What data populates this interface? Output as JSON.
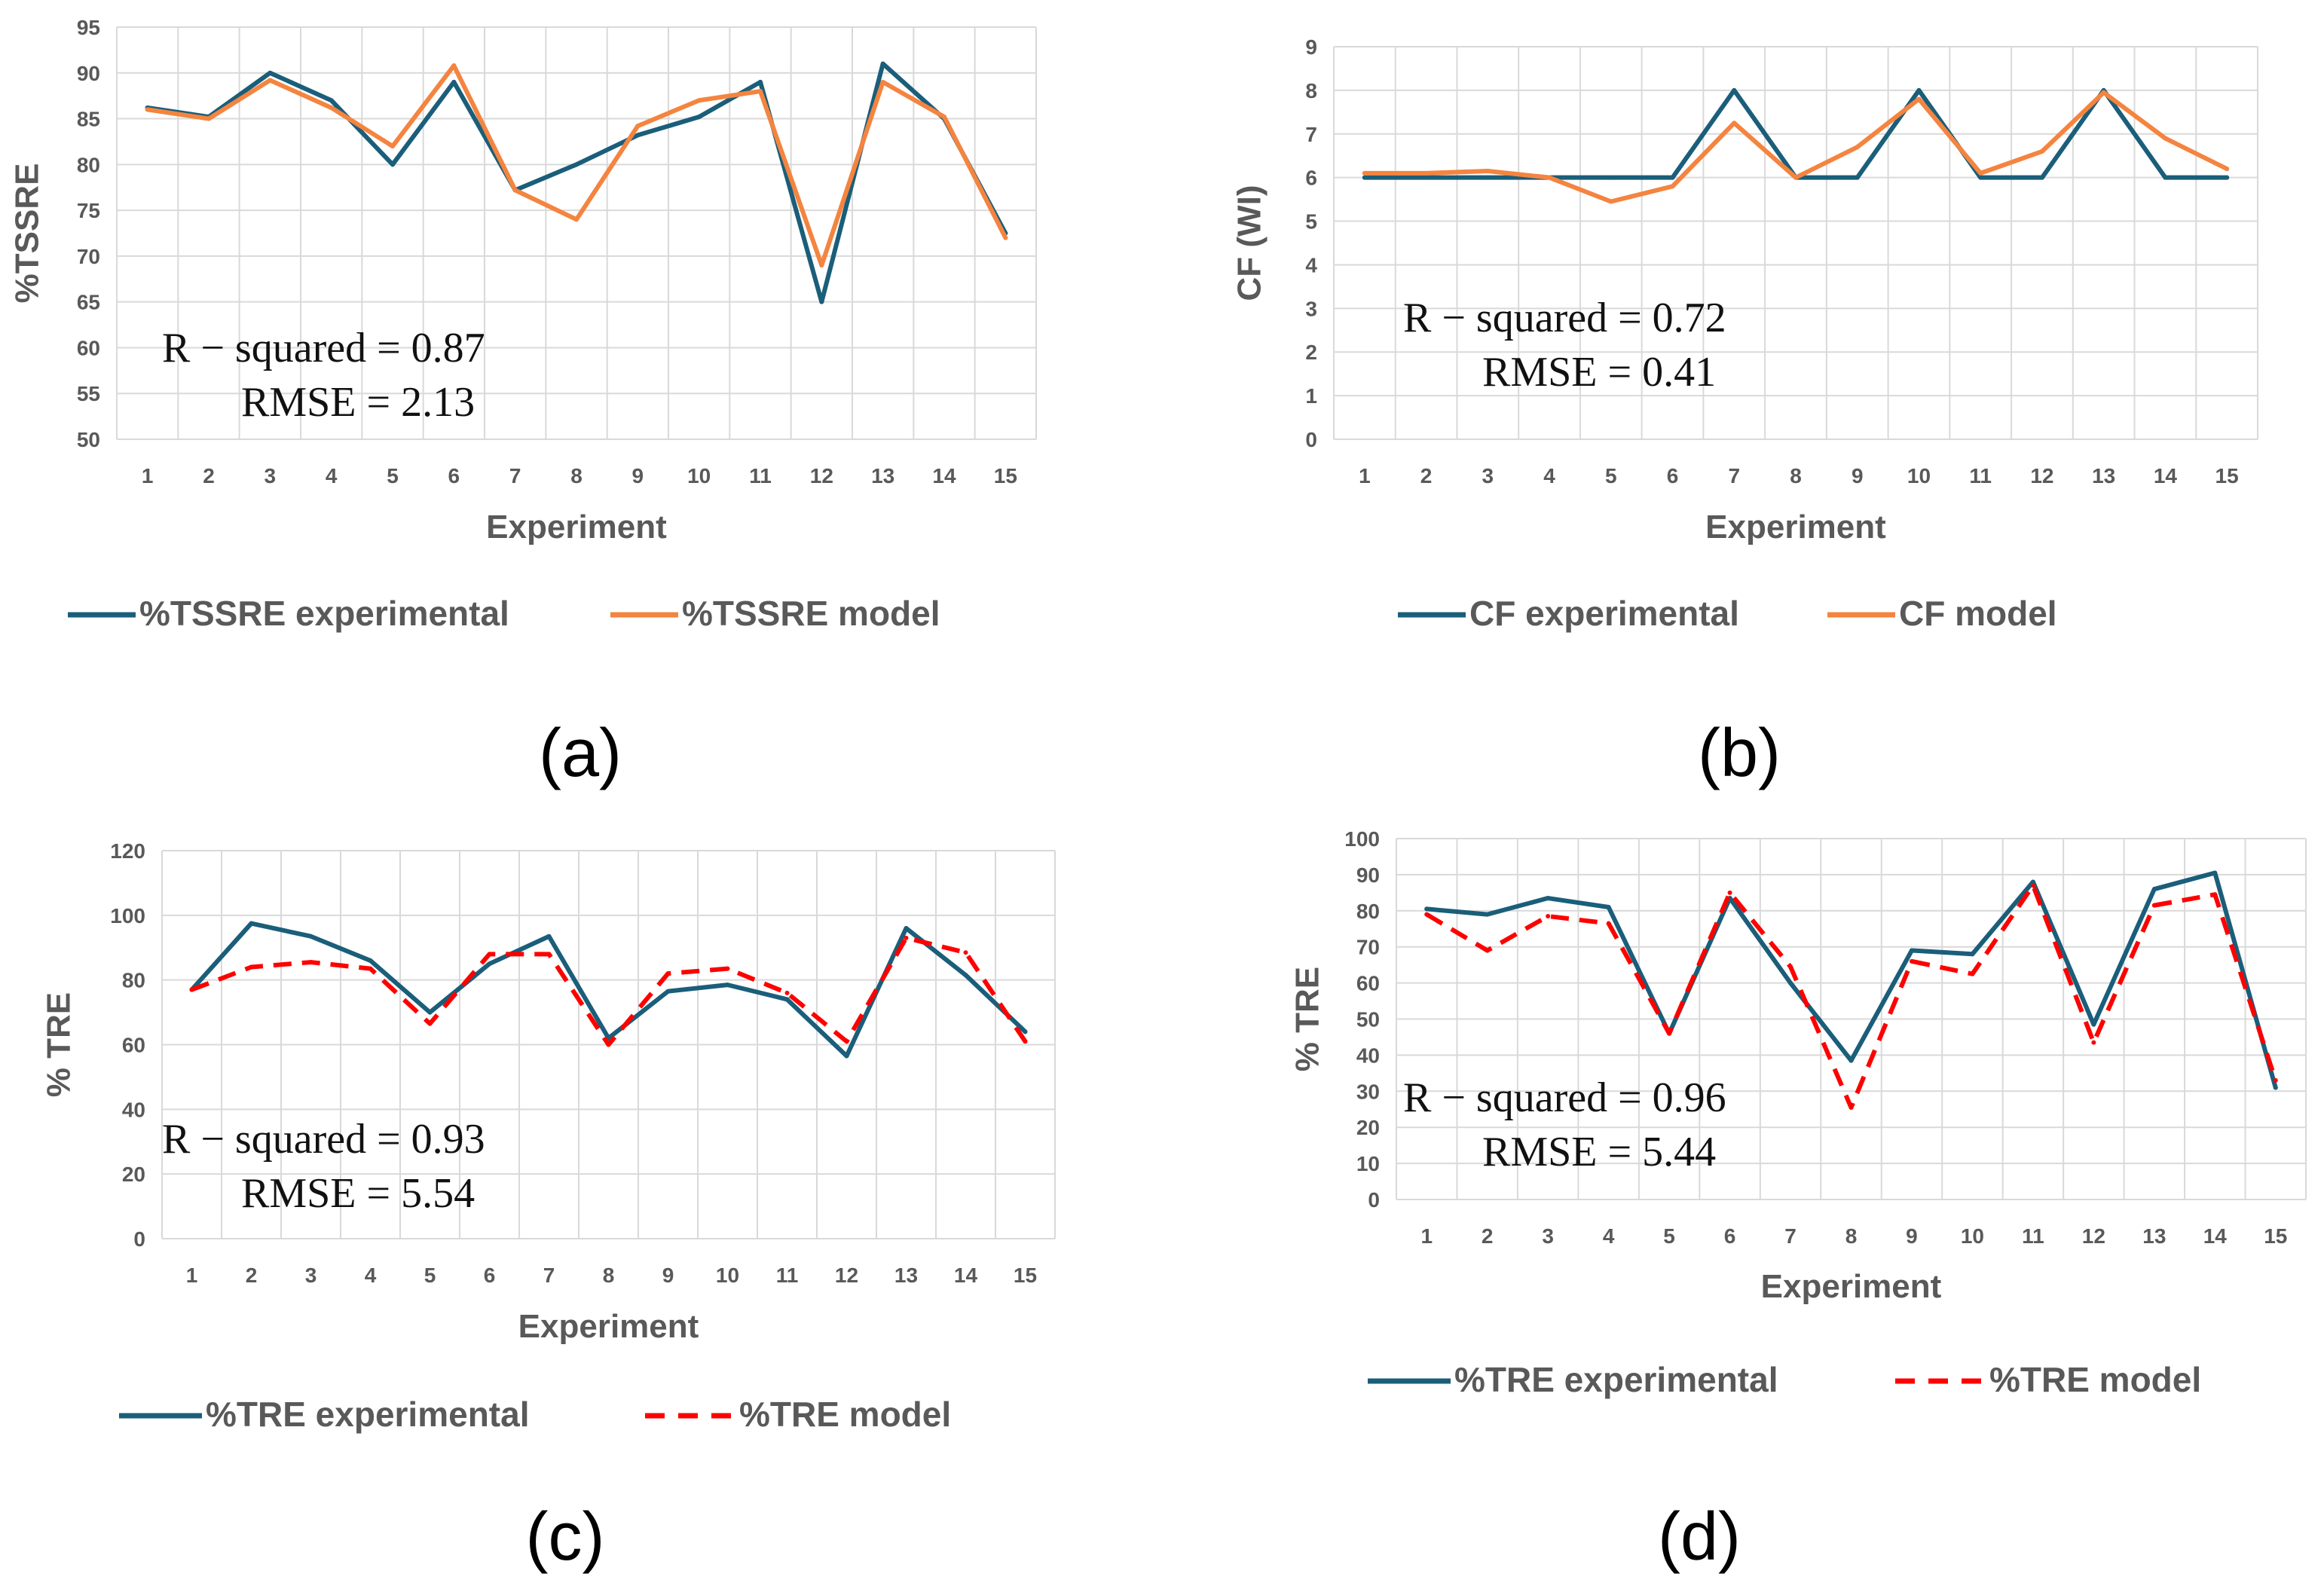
{
  "chart_data": [
    {
      "type": "line",
      "panel_label": "(a)",
      "title": "",
      "xlabel": "Experiment",
      "ylabel": "%TSSRE",
      "ylim": [
        50,
        95
      ],
      "ytick_step": 5,
      "grid": true,
      "legend": "bottom",
      "categories": [
        "1",
        "2",
        "3",
        "4",
        "5",
        "6",
        "7",
        "8",
        "9",
        "10",
        "11",
        "12",
        "13",
        "14",
        "15"
      ],
      "series": [
        {
          "name": "%TSSRE experimental",
          "color": "#1a5e7a",
          "dash": "solid",
          "values": [
            86.2,
            85.2,
            90.0,
            87.0,
            80.0,
            89.0,
            77.2,
            80.0,
            83.2,
            85.2,
            89.0,
            65.0,
            91.0,
            85.0,
            72.5
          ]
        },
        {
          "name": "%TSSRE model",
          "color": "#f4843f",
          "dash": "solid",
          "values": [
            86.0,
            85.0,
            89.2,
            86.2,
            82.0,
            90.8,
            77.2,
            74.0,
            84.2,
            87.0,
            88.0,
            69.0,
            89.0,
            85.2,
            72.0
          ]
        }
      ],
      "annotations": [
        "R − squared = 0.87",
        "RMSE = 2.13"
      ]
    },
    {
      "type": "line",
      "panel_label": "(b)",
      "title": "",
      "xlabel": "Experiment",
      "ylabel": "CF (WI)",
      "ylim": [
        0,
        9
      ],
      "ytick_step": 1,
      "grid": true,
      "legend": "bottom",
      "categories": [
        "1",
        "2",
        "3",
        "4",
        "5",
        "6",
        "7",
        "8",
        "9",
        "10",
        "11",
        "12",
        "13",
        "14",
        "15"
      ],
      "series": [
        {
          "name": "CF experimental",
          "color": "#1a5e7a",
          "dash": "solid",
          "values": [
            6,
            6,
            6,
            6,
            6,
            6,
            8,
            6,
            6,
            8,
            6,
            6,
            8,
            6,
            6
          ]
        },
        {
          "name": "CF model",
          "color": "#f4843f",
          "dash": "solid",
          "values": [
            6.1,
            6.1,
            6.15,
            6.0,
            5.45,
            5.8,
            7.25,
            6.0,
            6.7,
            7.8,
            6.1,
            6.6,
            7.95,
            6.9,
            6.2
          ]
        }
      ],
      "annotations": [
        "R − squared = 0.72",
        "RMSE = 0.41"
      ]
    },
    {
      "type": "line",
      "panel_label": "(c)",
      "title": "",
      "xlabel": "Experiment",
      "ylabel": "% TRE",
      "ylim": [
        0,
        120
      ],
      "ytick_step": 20,
      "grid": true,
      "legend": "bottom",
      "categories": [
        "1",
        "2",
        "3",
        "4",
        "5",
        "6",
        "7",
        "8",
        "9",
        "10",
        "11",
        "12",
        "13",
        "14",
        "15"
      ],
      "series": [
        {
          "name": "%TRE experimental",
          "color": "#1a5e7a",
          "dash": "solid",
          "values": [
            77,
            97.5,
            93.5,
            86,
            70,
            85,
            93.5,
            62,
            76.5,
            78.5,
            74,
            56.5,
            96,
            81.5,
            64
          ]
        },
        {
          "name": "%TRE model",
          "color": "#ff0000",
          "dash": "dashed",
          "values": [
            77,
            84,
            85.5,
            83.5,
            66.5,
            88,
            88,
            60,
            82,
            83.5,
            76,
            61,
            93,
            88.5,
            61
          ]
        }
      ],
      "annotations": [
        "R − squared = 0.93",
        "RMSE = 5.54"
      ]
    },
    {
      "type": "line",
      "panel_label": "(d)",
      "title": "",
      "xlabel": "Experiment",
      "ylabel": "% TRE",
      "ylim": [
        0,
        100
      ],
      "ytick_step": 10,
      "grid": true,
      "legend": "bottom",
      "categories": [
        "1",
        "2",
        "3",
        "4",
        "5",
        "6",
        "7",
        "8",
        "9",
        "10",
        "11",
        "12",
        "13",
        "14",
        "15"
      ],
      "series": [
        {
          "name": "%TRE experimental",
          "color": "#1a5e7a",
          "dash": "solid",
          "values": [
            80.5,
            79,
            83.5,
            81,
            46,
            83.5,
            60,
            38.5,
            69,
            68,
            88,
            48.5,
            86,
            90.5,
            31
          ]
        },
        {
          "name": "%TRE model",
          "color": "#ff0000",
          "dash": "dashed",
          "values": [
            79,
            69,
            78.5,
            76.5,
            46,
            85,
            64.5,
            25.5,
            66,
            62.5,
            87,
            43.5,
            81.5,
            84.5,
            33
          ]
        }
      ],
      "annotations": [
        "R − squared = 0.96",
        "RMSE = 5.44"
      ]
    }
  ]
}
